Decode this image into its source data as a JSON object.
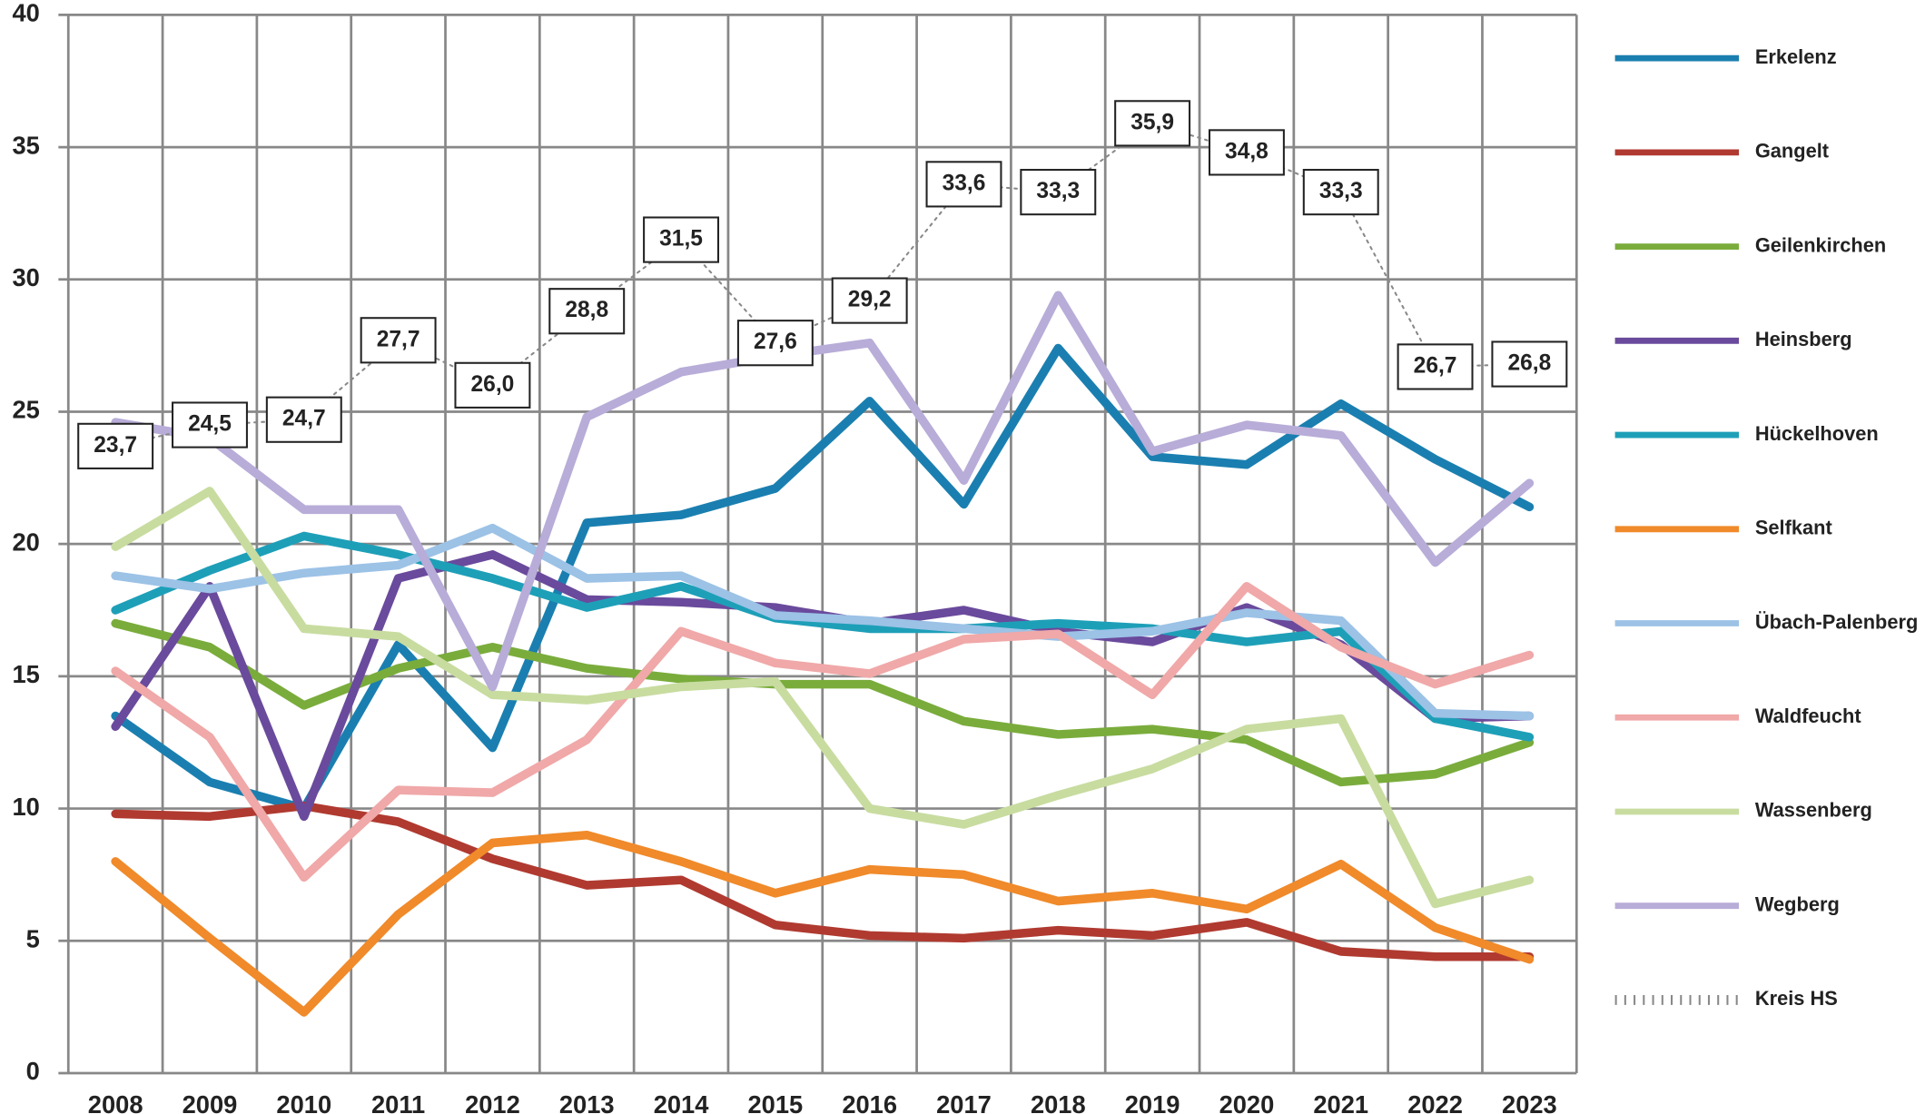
{
  "chart_data": {
    "type": "line",
    "categories": [
      "2008",
      "2009",
      "2010",
      "2011",
      "2012",
      "2013",
      "2014",
      "2015",
      "2016",
      "2017",
      "2018",
      "2019",
      "2020",
      "2021",
      "2022",
      "2023"
    ],
    "ylim": [
      0,
      40
    ],
    "yticks": [
      0,
      5,
      10,
      15,
      20,
      25,
      30,
      35,
      40
    ],
    "grid": true,
    "legend": "right",
    "series": [
      {
        "name": "Erkelenz",
        "color": "#1a7fb0",
        "values": [
          13.5,
          11.0,
          10.0,
          16.2,
          12.3,
          20.8,
          21.1,
          22.1,
          25.4,
          21.5,
          27.4,
          23.3,
          23.0,
          25.3,
          23.2,
          21.4
        ]
      },
      {
        "name": "Gangelt",
        "color": "#b03a30",
        "values": [
          9.8,
          9.7,
          10.1,
          9.5,
          8.1,
          7.1,
          7.3,
          5.6,
          5.2,
          5.1,
          5.4,
          5.2,
          5.7,
          4.6,
          4.4,
          4.4
        ]
      },
      {
        "name": "Geilenkirchen",
        "color": "#7aac3c",
        "values": [
          17.0,
          16.1,
          13.9,
          15.3,
          16.1,
          15.3,
          14.9,
          14.7,
          14.7,
          13.3,
          12.8,
          13.0,
          12.6,
          11.0,
          11.3,
          12.5
        ]
      },
      {
        "name": "Heinsberg",
        "color": "#6a4a9c",
        "values": [
          13.1,
          18.4,
          9.7,
          18.7,
          19.6,
          17.9,
          17.8,
          17.6,
          17.0,
          17.5,
          16.7,
          16.3,
          17.6,
          16.2,
          13.4,
          13.5
        ]
      },
      {
        "name": "Hückelhoven",
        "color": "#1e9fb8",
        "values": [
          17.5,
          19.0,
          20.3,
          19.6,
          18.7,
          17.6,
          18.4,
          17.2,
          16.8,
          16.8,
          17.0,
          16.8,
          16.3,
          16.7,
          13.4,
          12.7
        ]
      },
      {
        "name": "Selfkant",
        "color": "#f08a2a",
        "values": [
          8.0,
          5.1,
          2.3,
          6.0,
          8.7,
          9.0,
          8.0,
          6.8,
          7.7,
          7.5,
          6.5,
          6.8,
          6.2,
          7.9,
          5.5,
          4.3
        ]
      },
      {
        "name": "Übach-Palenberg",
        "color": "#9cc2e6",
        "values": [
          18.8,
          18.3,
          18.9,
          19.2,
          20.6,
          18.7,
          18.8,
          17.3,
          17.1,
          16.8,
          16.5,
          16.7,
          17.4,
          17.1,
          13.6,
          13.5
        ]
      },
      {
        "name": "Waldfeucht",
        "color": "#f0a8a8",
        "values": [
          15.2,
          12.7,
          7.4,
          10.7,
          10.6,
          12.6,
          16.7,
          15.5,
          15.1,
          16.4,
          16.6,
          14.3,
          18.4,
          16.1,
          14.7,
          15.8
        ]
      },
      {
        "name": "Wassenberg",
        "color": "#c8dca0",
        "values": [
          19.9,
          22.0,
          16.8,
          16.5,
          14.3,
          14.1,
          14.6,
          14.8,
          10.0,
          9.4,
          10.5,
          11.5,
          13.0,
          13.4,
          6.4,
          7.3
        ]
      },
      {
        "name": "Wegberg",
        "color": "#b8acd8",
        "values": [
          24.6,
          24.0,
          21.3,
          21.3,
          14.6,
          24.8,
          26.5,
          27.1,
          27.6,
          22.4,
          29.4,
          23.5,
          24.5,
          24.1,
          19.3,
          22.3
        ]
      },
      {
        "name": "Kreis HS",
        "color": "#888888",
        "style": "dotted",
        "values": [
          23.7,
          24.5,
          24.7,
          27.7,
          26.0,
          28.8,
          31.5,
          27.6,
          29.2,
          33.6,
          33.3,
          35.9,
          34.8,
          33.3,
          26.7,
          26.8
        ],
        "value_labels": [
          "23,7",
          "24,5",
          "24,7",
          "27,7",
          "26,0",
          "28,8",
          "31,5",
          "27,6",
          "29,2",
          "33,6",
          "33,3",
          "35,9",
          "34,8",
          "33,3",
          "26,7",
          "26,8"
        ]
      }
    ]
  }
}
